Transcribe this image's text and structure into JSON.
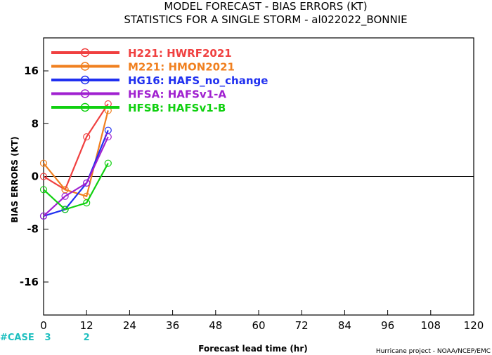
{
  "chart_data": {
    "type": "line",
    "title": "MODEL FORECAST - BIAS ERRORS (KT)",
    "subtitle": "STATISTICS FOR A SINGLE STORM - al022022_BONNIE",
    "xlabel": "Forecast lead time (hr)",
    "ylabel": "BIAS ERRORS (KT)",
    "xlim": [
      0,
      120
    ],
    "ylim": [
      -21,
      21
    ],
    "x_ticks": [
      0,
      12,
      24,
      36,
      48,
      60,
      72,
      84,
      96,
      108,
      120
    ],
    "y_ticks": [
      -16,
      -8,
      0,
      8,
      16
    ],
    "grid": false,
    "zero_line": true,
    "legend_position": "top-left",
    "series": [
      {
        "name": "H221: HWRF2021",
        "color": "#f04040",
        "x": [
          0,
          6,
          12,
          18
        ],
        "y": [
          0,
          -2,
          6,
          11
        ]
      },
      {
        "name": "M221: HMON2021",
        "color": "#f08020",
        "x": [
          0,
          6,
          12,
          18
        ],
        "y": [
          2,
          -2,
          -3,
          10
        ]
      },
      {
        "name": "HG16: HAFS_no_change",
        "color": "#2030f0",
        "x": [
          0,
          6,
          12,
          18
        ],
        "y": [
          -6,
          -5,
          -1,
          7
        ]
      },
      {
        "name": "HFSA: HAFSv1-A",
        "color": "#a020d0",
        "x": [
          0,
          6,
          12,
          18
        ],
        "y": [
          -6,
          -3,
          -1,
          6
        ]
      },
      {
        "name": "HFSB: HAFSv1-B",
        "color": "#10d010",
        "x": [
          0,
          6,
          12,
          18
        ],
        "y": [
          -2,
          -5,
          -4,
          2
        ]
      }
    ],
    "case_counts": {
      "label": "#CASE",
      "x": [
        0,
        12
      ],
      "values": [
        "3",
        "2"
      ],
      "color": "#20c0c0"
    },
    "footer": "Hurricane project - NOAA/NCEP/EMC"
  }
}
